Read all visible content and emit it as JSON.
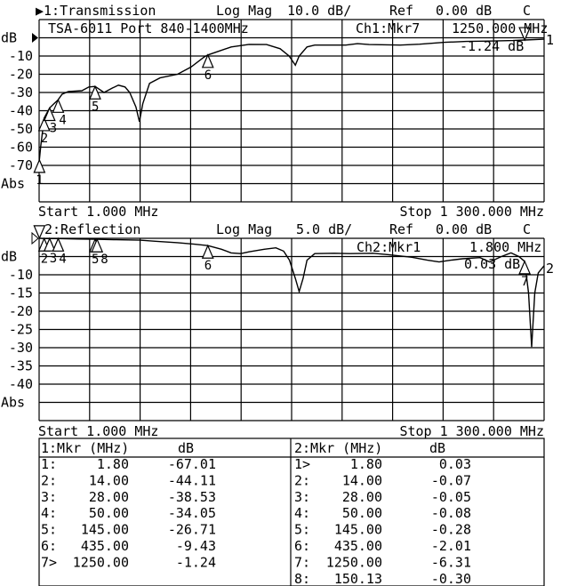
{
  "channel1": {
    "title": "▶1:Transmission",
    "format": "Log Mag",
    "scale": "10.0 dB/",
    "ref_label": "Ref",
    "ref_value": "0.00 dB",
    "cal": "C",
    "note": "TSA-6011 Port 840-1400MHz",
    "marker_readout": "Ch1:Mkr7",
    "marker_freq": "1250.000 MHz",
    "marker_value": "-1.24 dB",
    "ref_pos_label": "1",
    "y_labels": [
      "dB",
      "-10",
      "-20",
      "-30",
      "-40",
      "-50",
      "-60",
      "-70",
      "Abs"
    ],
    "start": "Start 1.000 MHz",
    "stop": "Stop 1 300.000 MHz"
  },
  "channel2": {
    "title": "2:Reflection",
    "format": "Log Mag",
    "scale": "5.0 dB/",
    "ref_label": "Ref",
    "ref_value": "0.00 dB",
    "cal": "C",
    "marker_readout": "Ch2:Mkr1",
    "marker_freq": "1.800 MHz",
    "marker_value": "0.03 dB",
    "ref_pos_label": "2",
    "y_labels": [
      "dB",
      "-10",
      "-15",
      "-20",
      "-25",
      "-30",
      "-35",
      "-40",
      "Abs"
    ],
    "start": "Start 1.000 MHz",
    "stop": "Stop 1 300.000 MHz"
  },
  "table": {
    "left": {
      "header_mkr": "1:Mkr (MHz)",
      "header_db": "dB",
      "rows": [
        {
          "id": "1:",
          "freq": "1.80",
          "db": "-67.01"
        },
        {
          "id": "2:",
          "freq": "14.00",
          "db": "-44.11"
        },
        {
          "id": "3:",
          "freq": "28.00",
          "db": "-38.53"
        },
        {
          "id": "4:",
          "freq": "50.00",
          "db": "-34.05"
        },
        {
          "id": "5:",
          "freq": "145.00",
          "db": "-26.71"
        },
        {
          "id": "6:",
          "freq": "435.00",
          "db": "-9.43"
        },
        {
          "id": "7>",
          "freq": "1250.00",
          "db": "-1.24"
        }
      ]
    },
    "right": {
      "header_mkr": "2:Mkr (MHz)",
      "header_db": "dB",
      "rows": [
        {
          "id": "1>",
          "freq": "1.80",
          "db": "0.03"
        },
        {
          "id": "2:",
          "freq": "14.00",
          "db": "-0.07"
        },
        {
          "id": "3:",
          "freq": "28.00",
          "db": "-0.05"
        },
        {
          "id": "4:",
          "freq": "50.00",
          "db": "-0.08"
        },
        {
          "id": "5:",
          "freq": "145.00",
          "db": "-0.28"
        },
        {
          "id": "6:",
          "freq": "435.00",
          "db": "-2.01"
        },
        {
          "id": "7:",
          "freq": "1250.00",
          "db": "-6.31"
        },
        {
          "id": "8:",
          "freq": "150.13",
          "db": "-0.30"
        }
      ]
    }
  },
  "chart_data": [
    {
      "type": "line",
      "title": "1:Transmission",
      "xlabel": "",
      "ylabel": "dB",
      "xlim": [
        1,
        1300
      ],
      "ylim": [
        -90,
        10
      ],
      "x_divisions": 10,
      "y_divisions": 10,
      "grid": true,
      "series": [
        {
          "points": [
            [
              1,
              -72
            ],
            [
              1.8,
              -67
            ],
            [
              5,
              -60
            ],
            [
              14,
              -44
            ],
            [
              28,
              -38.5
            ],
            [
              40,
              -36
            ],
            [
              50,
              -34
            ],
            [
              60,
              -31
            ],
            [
              76,
              -29.5
            ],
            [
              111,
              -29
            ],
            [
              129,
              -27
            ],
            [
              145,
              -26.7
            ],
            [
              168,
              -30
            ],
            [
              190,
              -27.5
            ],
            [
              205,
              -26
            ],
            [
              222,
              -27
            ],
            [
              234,
              -30
            ],
            [
              250,
              -38
            ],
            [
              259,
              -46
            ],
            [
              268,
              -36
            ],
            [
              285,
              -25
            ],
            [
              312,
              -22
            ],
            [
              357,
              -20
            ],
            [
              392,
              -16
            ],
            [
              426,
              -10.5
            ],
            [
              435,
              -9.4
            ],
            [
              495,
              -5
            ],
            [
              541,
              -3.6
            ],
            [
              586,
              -3.7
            ],
            [
              621,
              -6
            ],
            [
              644,
              -10
            ],
            [
              660,
              -15
            ],
            [
              670,
              -10
            ],
            [
              690,
              -5
            ],
            [
              710,
              -4
            ],
            [
              790,
              -4
            ],
            [
              820,
              -3.2
            ],
            [
              850,
              -3.7
            ],
            [
              930,
              -4
            ],
            [
              980,
              -3.5
            ],
            [
              1044,
              -2.5
            ],
            [
              1100,
              -2
            ],
            [
              1158,
              -1.8
            ],
            [
              1220,
              -1.5
            ],
            [
              1250,
              -1.24
            ],
            [
              1300,
              -0.8
            ]
          ]
        }
      ],
      "markers": [
        {
          "label": "1",
          "x": 1.8,
          "y": -67.01
        },
        {
          "label": "2",
          "x": 14,
          "y": -44.11
        },
        {
          "label": "3",
          "x": 28,
          "y": -38.53
        },
        {
          "label": "4",
          "x": 50,
          "y": -34.05
        },
        {
          "label": "5",
          "x": 145,
          "y": -26.71
        },
        {
          "label": "6",
          "x": 435,
          "y": -9.43
        },
        {
          "label": "7",
          "x": 1250,
          "y": -1.24,
          "active": true
        }
      ]
    },
    {
      "type": "line",
      "title": "2:Reflection",
      "xlabel": "",
      "ylabel": "dB",
      "xlim": [
        1,
        1300
      ],
      "ylim": [
        -50,
        0
      ],
      "x_divisions": 10,
      "y_divisions": 10,
      "grid": true,
      "series": [
        {
          "points": [
            [
              1,
              0.03
            ],
            [
              14,
              -0.07
            ],
            [
              28,
              -0.05
            ],
            [
              50,
              -0.08
            ],
            [
              100,
              -0.2
            ],
            [
              145,
              -0.28
            ],
            [
              200,
              -0.4
            ],
            [
              260,
              -0.5
            ],
            [
              300,
              -0.8
            ],
            [
              357,
              -1.2
            ],
            [
              400,
              -1.6
            ],
            [
              435,
              -2.01
            ],
            [
              470,
              -3
            ],
            [
              495,
              -4
            ],
            [
              520,
              -4.2
            ],
            [
              541,
              -3.7
            ],
            [
              580,
              -3
            ],
            [
              610,
              -2.6
            ],
            [
              630,
              -3.5
            ],
            [
              645,
              -6
            ],
            [
              660,
              -11
            ],
            [
              670,
              -14.6
            ],
            [
              680,
              -11
            ],
            [
              690,
              -6
            ],
            [
              710,
              -4.2
            ],
            [
              760,
              -4.1
            ],
            [
              800,
              -4.2
            ],
            [
              860,
              -4.1
            ],
            [
              900,
              -4.5
            ],
            [
              960,
              -5.2
            ],
            [
              1000,
              -6
            ],
            [
              1030,
              -6.5
            ],
            [
              1060,
              -6
            ],
            [
              1090,
              -5.6
            ],
            [
              1135,
              -5.3
            ],
            [
              1160,
              -6.5
            ],
            [
              1190,
              -5
            ],
            [
              1215,
              -4
            ],
            [
              1235,
              -5
            ],
            [
              1250,
              -6.31
            ],
            [
              1260,
              -15
            ],
            [
              1268,
              -29.8
            ],
            [
              1276,
              -15
            ],
            [
              1285,
              -9.5
            ],
            [
              1300,
              -7.5
            ]
          ]
        }
      ],
      "markers": [
        {
          "label": "1",
          "x": 1.8,
          "y": 0.03,
          "active": true
        },
        {
          "label": "2",
          "x": 14,
          "y": -0.07
        },
        {
          "label": "3",
          "x": 28,
          "y": -0.05
        },
        {
          "label": "4",
          "x": 50,
          "y": -0.08
        },
        {
          "label": "5",
          "x": 145,
          "y": -0.28
        },
        {
          "label": "6",
          "x": 435,
          "y": -2.01
        },
        {
          "label": "7",
          "x": 1250,
          "y": -6.31
        },
        {
          "label": "8",
          "x": 150.13,
          "y": -0.3
        }
      ]
    }
  ]
}
